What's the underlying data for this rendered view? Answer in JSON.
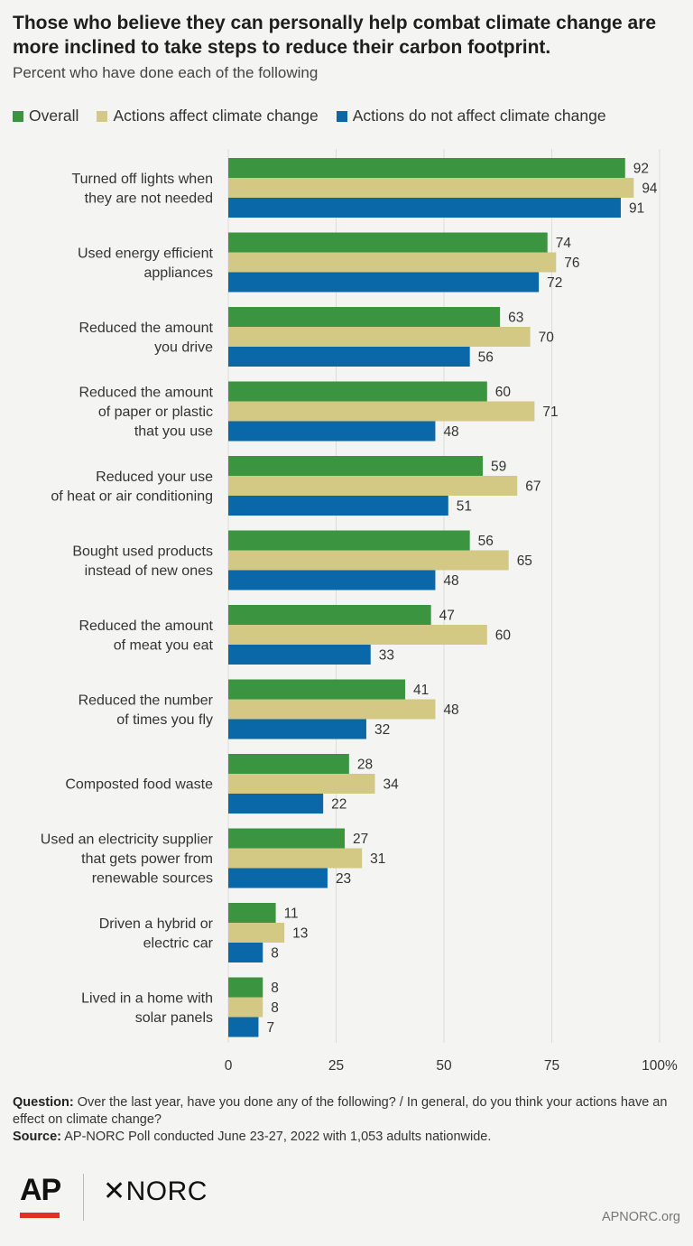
{
  "title": "Those who believe they can personally help combat climate change are more inclined to take steps to reduce their carbon footprint.",
  "subtitle": "Percent who have done each of the following",
  "notes": {
    "question_label": "Question:",
    "question_text": "Over the last year, have you done any of the following? / In general, do you think your actions have an effect on climate change?",
    "source_label": "Source:",
    "source_text": "AP-NORC Poll conducted June 23-27, 2022 with 1,053 adults nationwide."
  },
  "footer": {
    "ap_logo": "AP",
    "norc_logo": "✕NORC",
    "site": "APNORC.org"
  },
  "colors": {
    "overall": "#3a9440",
    "affect": "#d3c884",
    "not_affect": "#0a68a8"
  },
  "chart_data": {
    "type": "bar",
    "orientation": "horizontal",
    "categories": [
      [
        "Turned off lights when",
        "they are not needed"
      ],
      [
        "Used energy efficient",
        "appliances"
      ],
      [
        "Reduced the amount",
        "you drive"
      ],
      [
        "Reduced the amount",
        "of paper or plastic",
        "that you use"
      ],
      [
        "Reduced your use",
        "of heat or air conditioning"
      ],
      [
        "Bought used products",
        "instead of new ones"
      ],
      [
        "Reduced the amount",
        "of meat you eat"
      ],
      [
        "Reduced the number",
        "of times you fly"
      ],
      [
        "Composted food waste"
      ],
      [
        "Used an electricity supplier",
        "that gets power from",
        "renewable sources"
      ],
      [
        "Driven a hybrid or",
        "electric car"
      ],
      [
        "Lived in a home with",
        "solar panels"
      ]
    ],
    "series": [
      {
        "name": "Overall",
        "color": "#3a9440",
        "values": [
          92,
          74,
          63,
          60,
          59,
          56,
          47,
          41,
          28,
          27,
          11,
          8
        ]
      },
      {
        "name": "Actions affect climate change",
        "color": "#d3c884",
        "values": [
          94,
          76,
          70,
          71,
          67,
          65,
          60,
          48,
          34,
          31,
          13,
          8
        ]
      },
      {
        "name": "Actions do not affect climate change",
        "color": "#0a68a8",
        "values": [
          91,
          72,
          56,
          48,
          51,
          48,
          33,
          32,
          22,
          23,
          8,
          7
        ]
      }
    ],
    "xlim": [
      0,
      100
    ],
    "xticks": [
      "0",
      "25",
      "50",
      "75",
      "100%"
    ],
    "xtick_values": [
      0,
      25,
      50,
      75,
      100
    ],
    "grid": true,
    "legend_position": "top"
  }
}
